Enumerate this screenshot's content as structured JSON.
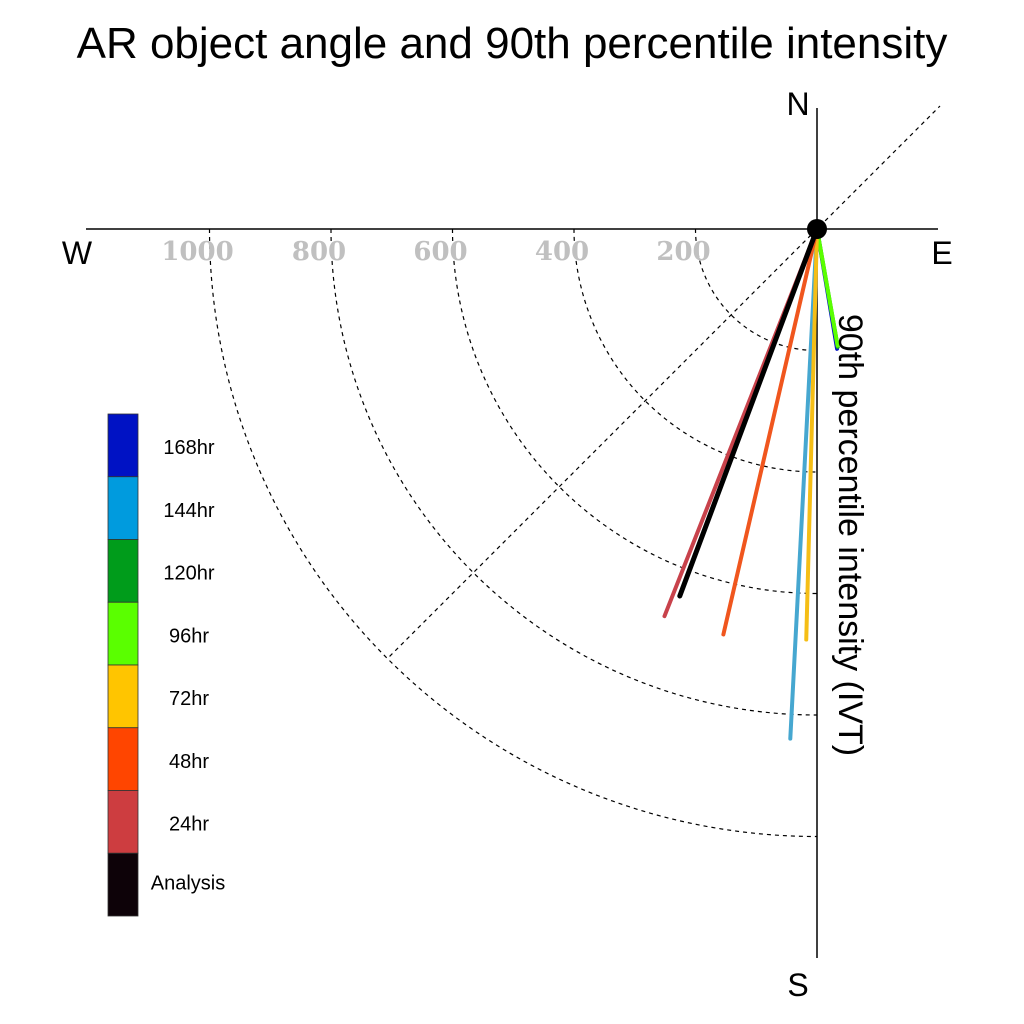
{
  "chart_data": {
    "type": "polar-vector",
    "title": "AR object angle and 90th percentile intensity",
    "axis_label": "90th percentile intensity (IVT)",
    "directions": {
      "north": "N",
      "south": "S",
      "east": "E",
      "west": "W"
    },
    "ring_values": [
      200,
      400,
      600,
      800,
      1000
    ],
    "ring_labels": [
      "200",
      "400",
      "600",
      "800",
      "1000"
    ],
    "r_max": 1200,
    "grid": true,
    "legend_position": "left",
    "series": [
      {
        "name": "168hr",
        "color": "#0012c4",
        "angle_deg": 170.5,
        "intensity": 200
      },
      {
        "name": "144hr",
        "color": "#46a7d0",
        "angle_deg": 183.0,
        "intensity": 840
      },
      {
        "name": "120hr",
        "color": "#129c25",
        "angle_deg": 170.0,
        "intensity": 197
      },
      {
        "name": "96hr",
        "color": "#5aff00",
        "angle_deg": 170.0,
        "intensity": 195
      },
      {
        "name": "72hr",
        "color": "#f5be16",
        "angle_deg": 181.5,
        "intensity": 676
      },
      {
        "name": "48hr",
        "color": "#f0561e",
        "angle_deg": 193.0,
        "intensity": 685
      },
      {
        "name": "24hr",
        "color": "#c8424b",
        "angle_deg": 201.5,
        "intensity": 685
      },
      {
        "name": "Analysis",
        "color": "#000000",
        "angle_deg": 200.5,
        "intensity": 645
      }
    ],
    "legend_colors": [
      "#0012c4",
      "#009bde",
      "#009c1b",
      "#5aff00",
      "#ffc500",
      "#ff4500",
      "#cd3d40",
      "#0d0208"
    ]
  }
}
